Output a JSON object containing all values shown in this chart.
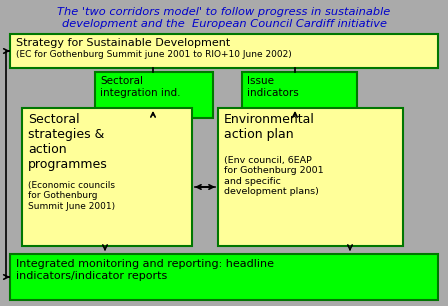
{
  "title_line1": "The 'two corridors model' to follow progress in sustainable",
  "title_line2": "development and the  European Council Cardiff initiative",
  "title_color": "#0000cc",
  "bg_color": "#aaaaaa",
  "box_yellow": "#ffff99",
  "box_green_bright": "#00ff00",
  "border_dark": "#007700",
  "top_box_text_line1": "Strategy for Sustainable Development",
  "top_box_text_line2": "(EC for Gothenburg Summit june 2001 to RIO+10 June 2002)",
  "left_green_box_text": "Sectoral\nintegration ind.",
  "right_green_box_text": "Issue\nindicators",
  "left_yellow_box_text_main": "Sectoral\nstrategies &\naction\nprogrammes",
  "left_yellow_box_text_sub": "(Economic councils\nfor Gothenburg\nSummit June 2001)",
  "right_yellow_box_text_main": "Environmental\naction plan",
  "right_yellow_box_text_sub": "(Env council, 6EAP\nfor Gothenburg 2001\nand specific\ndevelopment plans)",
  "bottom_box_text": "Integrated monitoring and reporting: headline\nindicators/indicator reports"
}
